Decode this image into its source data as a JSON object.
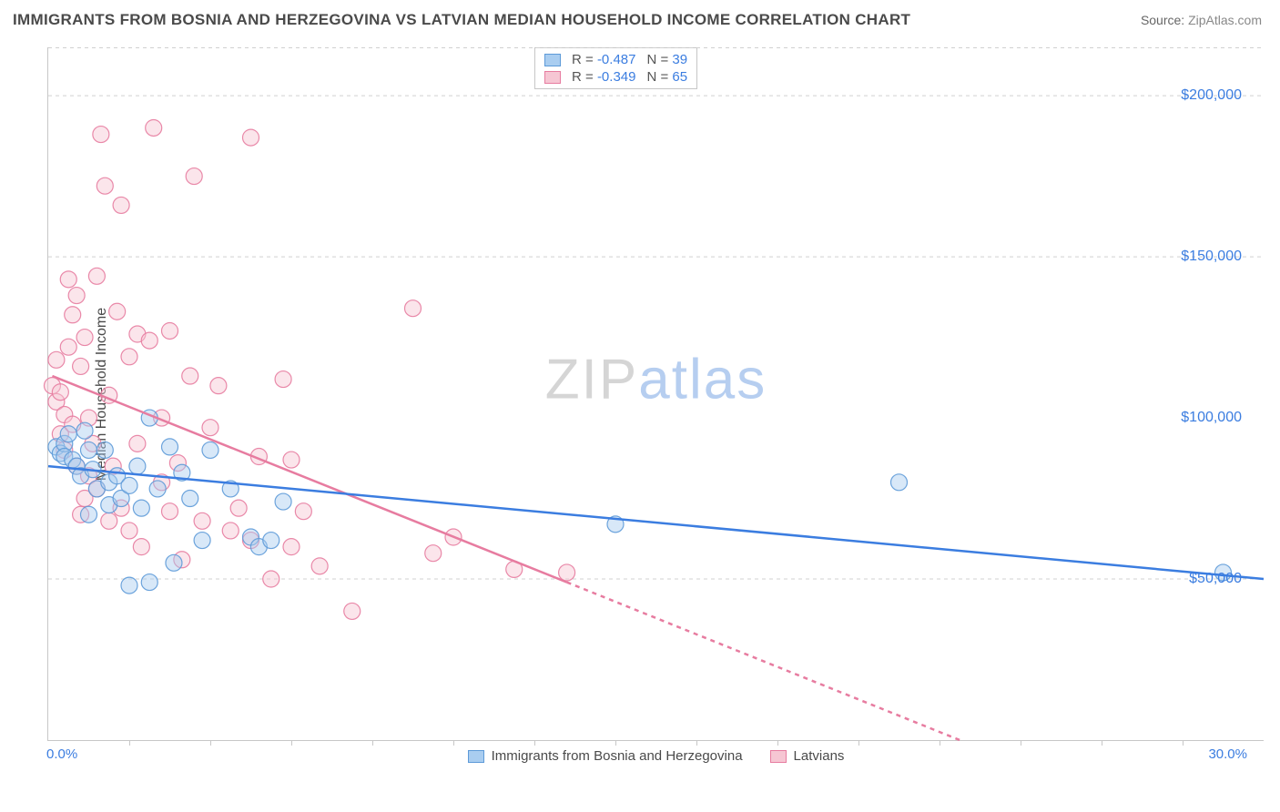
{
  "title": "IMMIGRANTS FROM BOSNIA AND HERZEGOVINA VS LATVIAN MEDIAN HOUSEHOLD INCOME CORRELATION CHART",
  "source": {
    "label": "Source:",
    "value": "ZipAtlas.com"
  },
  "ylabel": "Median Household Income",
  "watermark": {
    "left": "ZIP",
    "right": "atlas"
  },
  "chart": {
    "type": "scatter",
    "xlim": [
      0,
      30
    ],
    "ylim": [
      0,
      215000
    ],
    "x_ticks_labels": {
      "min": "0.0%",
      "max": "30.0%"
    },
    "x_minor_ticks": [
      2,
      4,
      6,
      8,
      10,
      12,
      14,
      16,
      18,
      20,
      22,
      24,
      26,
      28
    ],
    "y_grid": [
      50000,
      150000,
      200000
    ],
    "y_tick_labels": [
      "$50,000",
      "$100,000",
      "$150,000",
      "$200,000"
    ],
    "y_tick_values": [
      50000,
      100000,
      150000,
      200000
    ],
    "grid_color": "#d0d0d0",
    "axis_color": "#c7c7c7",
    "background_color": "#ffffff",
    "marker_radius": 9,
    "marker_opacity": 0.45,
    "line_width": 2.5,
    "series": [
      {
        "name": "Immigrants from Bosnia and Herzegovina",
        "color_fill": "#a9cdf0",
        "color_stroke": "#5d9ad8",
        "R": "-0.487",
        "N": "39",
        "trend": {
          "solid": [
            [
              0,
              85000
            ],
            [
              30,
              50000
            ]
          ]
        },
        "points": [
          [
            0.2,
            91000
          ],
          [
            0.3,
            89000
          ],
          [
            0.4,
            92000
          ],
          [
            0.4,
            88000
          ],
          [
            0.5,
            95000
          ],
          [
            0.6,
            87000
          ],
          [
            0.7,
            85000
          ],
          [
            0.8,
            82000
          ],
          [
            0.9,
            96000
          ],
          [
            1.0,
            90000
          ],
          [
            1.0,
            70000
          ],
          [
            1.1,
            84000
          ],
          [
            1.2,
            78000
          ],
          [
            1.4,
            90000
          ],
          [
            1.5,
            80000
          ],
          [
            1.5,
            73000
          ],
          [
            1.7,
            82000
          ],
          [
            1.8,
            75000
          ],
          [
            2.0,
            79000
          ],
          [
            2.0,
            48000
          ],
          [
            2.2,
            85000
          ],
          [
            2.3,
            72000
          ],
          [
            2.5,
            100000
          ],
          [
            2.5,
            49000
          ],
          [
            2.7,
            78000
          ],
          [
            3.0,
            91000
          ],
          [
            3.1,
            55000
          ],
          [
            3.3,
            83000
          ],
          [
            3.5,
            75000
          ],
          [
            3.8,
            62000
          ],
          [
            4.0,
            90000
          ],
          [
            4.5,
            78000
          ],
          [
            5.0,
            63000
          ],
          [
            5.2,
            60000
          ],
          [
            5.5,
            62000
          ],
          [
            5.8,
            74000
          ],
          [
            14.0,
            67000
          ],
          [
            21.0,
            80000
          ],
          [
            29.0,
            52000
          ]
        ]
      },
      {
        "name": "Latvians",
        "color_fill": "#f6c6d3",
        "color_stroke": "#e77ca0",
        "R": "-0.349",
        "N": "65",
        "trend": {
          "solid": [
            [
              0.1,
              113000
            ],
            [
              12.8,
              49000
            ]
          ],
          "dashed": [
            [
              12.8,
              49000
            ],
            [
              22.5,
              0
            ]
          ]
        },
        "points": [
          [
            0.1,
            110000
          ],
          [
            0.2,
            105000
          ],
          [
            0.2,
            118000
          ],
          [
            0.3,
            95000
          ],
          [
            0.3,
            108000
          ],
          [
            0.4,
            101000
          ],
          [
            0.4,
            90000
          ],
          [
            0.5,
            122000
          ],
          [
            0.5,
            143000
          ],
          [
            0.6,
            98000
          ],
          [
            0.6,
            132000
          ],
          [
            0.7,
            85000
          ],
          [
            0.7,
            138000
          ],
          [
            0.8,
            70000
          ],
          [
            0.8,
            116000
          ],
          [
            0.9,
            75000
          ],
          [
            0.9,
            125000
          ],
          [
            1.0,
            100000
          ],
          [
            1.0,
            82000
          ],
          [
            1.1,
            92000
          ],
          [
            1.2,
            144000
          ],
          [
            1.2,
            78000
          ],
          [
            1.3,
            188000
          ],
          [
            1.4,
            172000
          ],
          [
            1.5,
            68000
          ],
          [
            1.5,
            107000
          ],
          [
            1.6,
            85000
          ],
          [
            1.7,
            133000
          ],
          [
            1.8,
            72000
          ],
          [
            1.8,
            166000
          ],
          [
            2.0,
            119000
          ],
          [
            2.0,
            65000
          ],
          [
            2.2,
            92000
          ],
          [
            2.2,
            126000
          ],
          [
            2.3,
            60000
          ],
          [
            2.5,
            124000
          ],
          [
            2.6,
            190000
          ],
          [
            2.8,
            80000
          ],
          [
            2.8,
            100000
          ],
          [
            3.0,
            71000
          ],
          [
            3.0,
            127000
          ],
          [
            3.2,
            86000
          ],
          [
            3.3,
            56000
          ],
          [
            3.5,
            113000
          ],
          [
            3.6,
            175000
          ],
          [
            3.8,
            68000
          ],
          [
            4.0,
            97000
          ],
          [
            4.2,
            110000
          ],
          [
            4.5,
            65000
          ],
          [
            4.7,
            72000
          ],
          [
            5.0,
            62000
          ],
          [
            5.0,
            187000
          ],
          [
            5.2,
            88000
          ],
          [
            5.5,
            50000
          ],
          [
            5.8,
            112000
          ],
          [
            6.0,
            60000
          ],
          [
            6.0,
            87000
          ],
          [
            6.3,
            71000
          ],
          [
            6.7,
            54000
          ],
          [
            7.5,
            40000
          ],
          [
            9.0,
            134000
          ],
          [
            9.5,
            58000
          ],
          [
            10.0,
            63000
          ],
          [
            11.5,
            53000
          ],
          [
            12.8,
            52000
          ]
        ]
      }
    ]
  }
}
